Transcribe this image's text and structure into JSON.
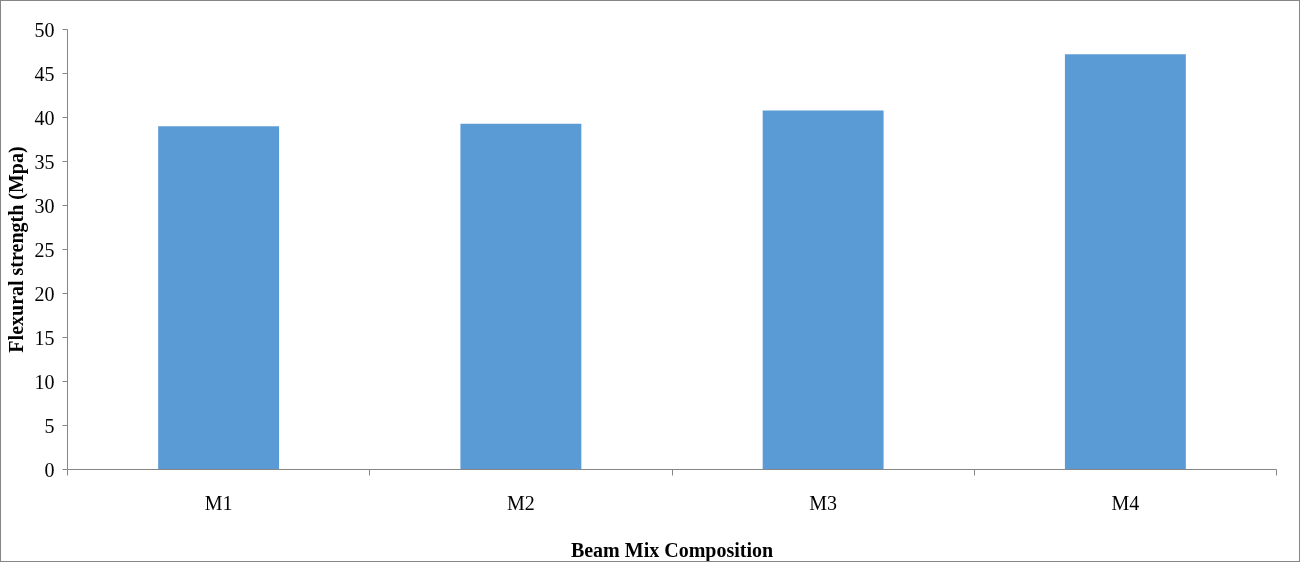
{
  "chart_data": {
    "type": "bar",
    "xlabel": "Beam Mix Composition",
    "ylabel": "Flexural strength (Mpa)",
    "categories": [
      "M1",
      "M2",
      "M3",
      "M4"
    ],
    "values": [
      39.0,
      39.3,
      40.8,
      47.2
    ],
    "color": "#5b9bd5",
    "ylim": [
      0,
      50
    ],
    "yticks": [
      0,
      5,
      10,
      15,
      20,
      25,
      30,
      35,
      40,
      45,
      50
    ],
    "grid": false
  }
}
